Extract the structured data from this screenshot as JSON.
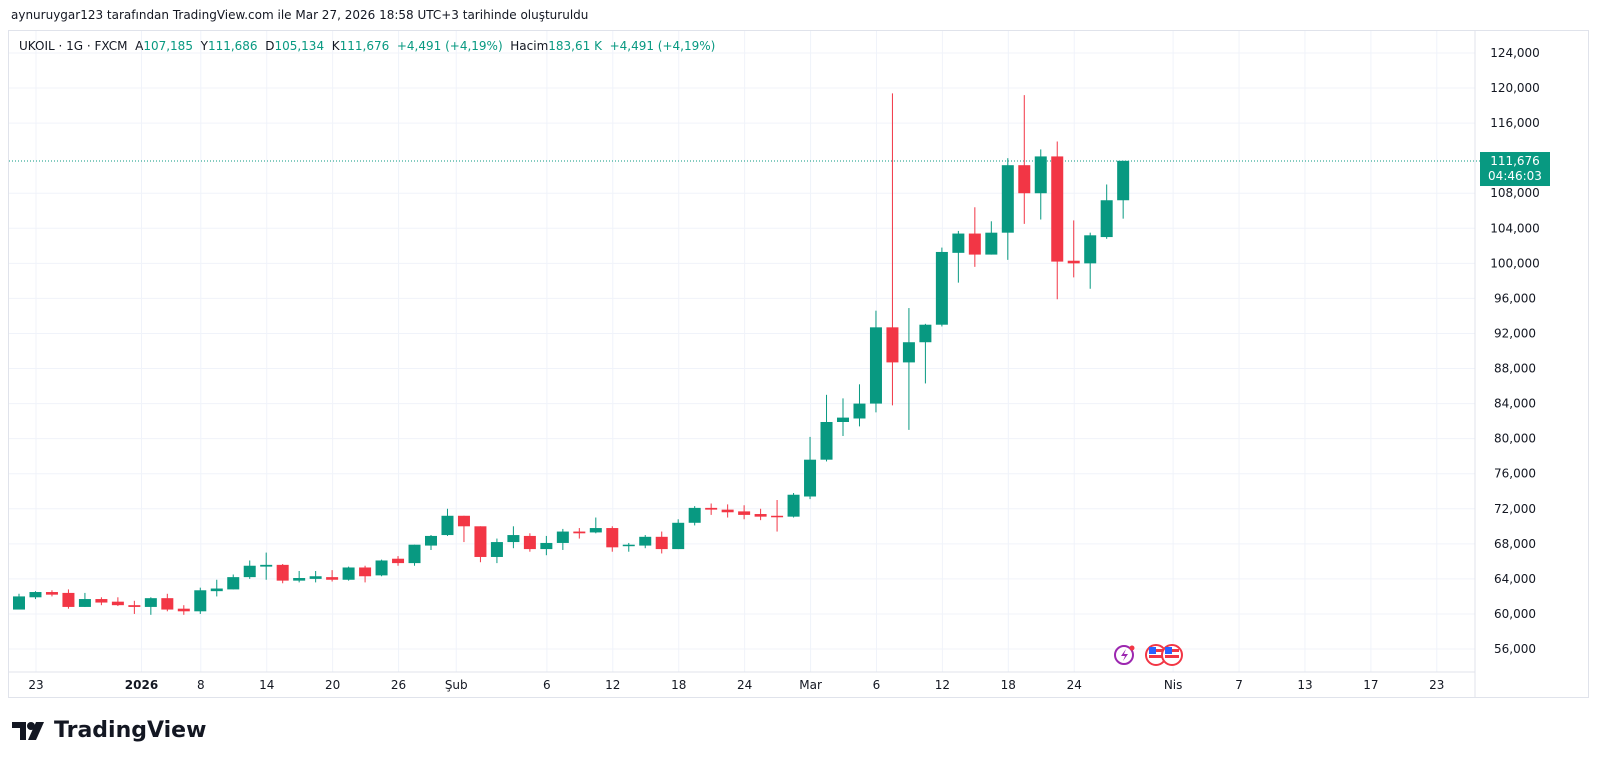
{
  "credit": "aynuruygar123 tarafından TradingView.com ile Mar 27, 2026 18:58 UTC+3 tarihinde oluşturuldu",
  "legend": {
    "symbol": "UKOIL · 1G · FXCM",
    "open_label": "A",
    "open": "107,185",
    "high_label": "Y",
    "high": "111,686",
    "low_label": "D",
    "low": "105,134",
    "close_label": "K",
    "close": "111,676",
    "change": "+4,491 (+4,19%)",
    "volume_label": "Hacim",
    "volume": "183,61 K",
    "volume_change": "+4,491 (+4,19%)"
  },
  "price_tag": {
    "price": "111,676",
    "countdown": "04:46:03"
  },
  "brand": "TradingView",
  "colors": {
    "up": "#089981",
    "down": "#f23645",
    "grid": "#f0f3fa",
    "text": "#131722"
  },
  "chart_data": {
    "type": "candlestick",
    "title": "UKOIL · 1G · FXCM",
    "ylim": [
      53000,
      125500
    ],
    "y_ticks": [
      124000,
      120000,
      116000,
      108000,
      104000,
      100000,
      96000,
      92000,
      88000,
      84000,
      80000,
      76000,
      72000,
      68000,
      64000,
      60000,
      56000
    ],
    "y_tick_labels": [
      "124,000",
      "120,000",
      "116,000",
      "108,000",
      "104,000",
      "100,000",
      "96,000",
      "92,000",
      "88,000",
      "84,000",
      "80,000",
      "76,000",
      "72,000",
      "68,000",
      "64,000",
      "60,000",
      "56,000"
    ],
    "x_ticks": [
      {
        "bar": 1,
        "label": "23"
      },
      {
        "bar": 7.4,
        "label": "2026"
      },
      {
        "bar": 11,
        "label": "8"
      },
      {
        "bar": 15,
        "label": "14"
      },
      {
        "bar": 19,
        "label": "20"
      },
      {
        "bar": 23,
        "label": "26"
      },
      {
        "bar": 26.5,
        "label": "Şub"
      },
      {
        "bar": 32,
        "label": "6"
      },
      {
        "bar": 36,
        "label": "12"
      },
      {
        "bar": 40,
        "label": "18"
      },
      {
        "bar": 44,
        "label": "24"
      },
      {
        "bar": 48,
        "label": "Mar"
      },
      {
        "bar": 52,
        "label": "6"
      },
      {
        "bar": 56,
        "label": "12"
      },
      {
        "bar": 60,
        "label": "18"
      },
      {
        "bar": 64,
        "label": "24"
      },
      {
        "bar": 70,
        "label": "Nis"
      },
      {
        "bar": 74,
        "label": "7"
      },
      {
        "bar": 78,
        "label": "13"
      },
      {
        "bar": 82,
        "label": "17"
      },
      {
        "bar": 86,
        "label": "23"
      }
    ],
    "last_price": 111676,
    "ohlc": [
      [
        60.5,
        62.3,
        60.5,
        62.0
      ],
      [
        61.9,
        62.6,
        61.7,
        62.5
      ],
      [
        62.5,
        62.7,
        62.0,
        62.2
      ],
      [
        62.4,
        62.8,
        60.6,
        60.8
      ],
      [
        60.8,
        62.4,
        60.8,
        61.7
      ],
      [
        61.7,
        61.9,
        61.0,
        61.3
      ],
      [
        61.4,
        61.9,
        60.9,
        61.0
      ],
      [
        61.0,
        61.5,
        60.0,
        60.8
      ],
      [
        60.8,
        61.9,
        59.9,
        61.8
      ],
      [
        61.8,
        62.3,
        60.3,
        60.5
      ],
      [
        60.6,
        61.0,
        59.9,
        60.3
      ],
      [
        60.3,
        63.0,
        60.0,
        62.7
      ],
      [
        62.6,
        63.9,
        62.0,
        62.9
      ],
      [
        62.8,
        64.5,
        62.8,
        64.2
      ],
      [
        64.2,
        66.1,
        64.0,
        65.5
      ],
      [
        65.4,
        67.0,
        63.9,
        65.6
      ],
      [
        65.6,
        65.7,
        63.5,
        63.8
      ],
      [
        63.8,
        64.9,
        63.6,
        64.1
      ],
      [
        64.0,
        64.9,
        63.6,
        64.3
      ],
      [
        64.2,
        65.0,
        63.7,
        63.9
      ],
      [
        63.9,
        65.4,
        63.8,
        65.3
      ],
      [
        65.3,
        65.5,
        63.6,
        64.3
      ],
      [
        64.4,
        66.2,
        64.3,
        66.1
      ],
      [
        66.3,
        66.6,
        65.5,
        65.8
      ],
      [
        65.8,
        67.9,
        65.5,
        67.9
      ],
      [
        67.8,
        69.0,
        67.3,
        68.9
      ],
      [
        69.0,
        72.0,
        68.9,
        71.2
      ],
      [
        71.2,
        71.2,
        68.2,
        70.0
      ],
      [
        70.0,
        70.0,
        65.9,
        66.5
      ],
      [
        66.5,
        68.6,
        65.8,
        68.2
      ],
      [
        68.2,
        70.0,
        67.5,
        69.0
      ],
      [
        68.9,
        69.2,
        67.1,
        67.4
      ],
      [
        67.4,
        68.9,
        66.7,
        68.1
      ],
      [
        68.1,
        69.7,
        67.3,
        69.4
      ],
      [
        69.4,
        69.8,
        68.6,
        69.2
      ],
      [
        69.3,
        71.0,
        69.2,
        69.8
      ],
      [
        69.8,
        70.0,
        67.1,
        67.6
      ],
      [
        67.8,
        68.1,
        67.1,
        67.9
      ],
      [
        67.8,
        69.0,
        67.5,
        68.8
      ],
      [
        68.8,
        69.4,
        66.9,
        67.4
      ],
      [
        67.4,
        70.8,
        67.4,
        70.4
      ],
      [
        70.4,
        72.3,
        70.1,
        72.1
      ],
      [
        72.1,
        72.6,
        71.3,
        71.9
      ],
      [
        71.9,
        72.5,
        71.0,
        71.6
      ],
      [
        71.7,
        72.4,
        70.8,
        71.3
      ],
      [
        71.4,
        72.0,
        70.7,
        71.1
      ],
      [
        71.2,
        73.0,
        69.4,
        71.1
      ],
      [
        71.1,
        73.8,
        71.0,
        73.6
      ],
      [
        73.4,
        80.2,
        73.1,
        77.6
      ],
      [
        77.6,
        85.0,
        77.4,
        81.9
      ],
      [
        81.9,
        84.6,
        80.3,
        82.4
      ],
      [
        82.3,
        86.2,
        81.4,
        84.0
      ],
      [
        84.0,
        94.6,
        83.0,
        92.7
      ],
      [
        92.7,
        119.4,
        83.8,
        88.7
      ],
      [
        88.7,
        94.9,
        81.0,
        91.0
      ],
      [
        91.0,
        93.1,
        86.3,
        93.0
      ],
      [
        93.0,
        101.8,
        92.8,
        101.3
      ],
      [
        101.2,
        103.7,
        97.8,
        103.4
      ],
      [
        103.4,
        106.4,
        99.6,
        101.0
      ],
      [
        101.0,
        104.8,
        101.0,
        103.5
      ],
      [
        103.5,
        112.0,
        100.4,
        111.2
      ],
      [
        111.2,
        119.2,
        104.5,
        108.0
      ],
      [
        108.0,
        113.0,
        105.0,
        112.2
      ],
      [
        112.2,
        113.9,
        95.9,
        100.2
      ],
      [
        100.3,
        104.9,
        98.4,
        100.0
      ],
      [
        100.0,
        103.5,
        97.1,
        103.2
      ],
      [
        103.0,
        109.0,
        102.8,
        107.2
      ],
      [
        107.2,
        111.7,
        105.1,
        111.7
      ]
    ],
    "ohlc_units": "thousands USD"
  }
}
